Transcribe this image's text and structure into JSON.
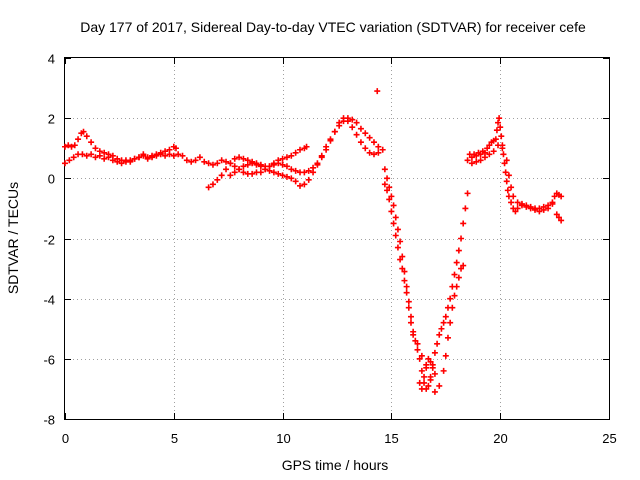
{
  "chart_data": {
    "type": "scatter",
    "title": "Day 177 of 2017, Sidereal Day-to-day VTEC variation (SDTVAR) for receiver cefe",
    "xlabel": "GPS time / hours",
    "ylabel": "SDTVAR / TECUs",
    "xlim": [
      0,
      25
    ],
    "ylim": [
      -8,
      4
    ],
    "x_ticks": [
      "0",
      "5",
      "10",
      "15",
      "20",
      "25"
    ],
    "y_ticks": [
      "-8",
      "-6",
      "-4",
      "-2",
      "0",
      "2",
      "4"
    ],
    "grid": true,
    "legend": "none",
    "marker": "+",
    "color": "#ff0000",
    "series": [
      {
        "points": [
          [
            0.0,
            0.5
          ],
          [
            0.2,
            0.6
          ],
          [
            0.4,
            0.7
          ],
          [
            0.6,
            0.8
          ],
          [
            0.8,
            0.8
          ],
          [
            1.0,
            0.75
          ],
          [
            1.2,
            0.8
          ],
          [
            1.4,
            0.7
          ],
          [
            1.6,
            0.75
          ],
          [
            1.8,
            0.65
          ],
          [
            2.0,
            0.7
          ],
          [
            2.2,
            0.6
          ],
          [
            2.4,
            0.55
          ],
          [
            2.6,
            0.5
          ],
          [
            2.8,
            0.6
          ],
          [
            3.0,
            0.55
          ],
          [
            3.2,
            0.65
          ],
          [
            3.4,
            0.7
          ],
          [
            3.6,
            0.8
          ],
          [
            3.8,
            0.65
          ],
          [
            4.0,
            0.7
          ],
          [
            4.2,
            0.75
          ],
          [
            4.4,
            0.8
          ],
          [
            4.6,
            0.75
          ],
          [
            4.8,
            0.8
          ],
          [
            5.0,
            0.75
          ],
          [
            5.2,
            0.8
          ],
          [
            5.4,
            0.75
          ],
          [
            5.6,
            0.6
          ],
          [
            5.8,
            0.55
          ],
          [
            6.0,
            0.6
          ],
          [
            6.2,
            0.7
          ],
          [
            6.4,
            0.55
          ],
          [
            6.6,
            0.5
          ],
          [
            6.8,
            0.45
          ],
          [
            7.0,
            0.5
          ],
          [
            7.2,
            0.6
          ],
          [
            7.4,
            0.55
          ],
          [
            7.6,
            0.5
          ],
          [
            7.8,
            0.4
          ],
          [
            8.0,
            0.3
          ],
          [
            8.2,
            0.2
          ],
          [
            8.4,
            0.15
          ],
          [
            8.6,
            0.15
          ],
          [
            8.8,
            0.2
          ],
          [
            9.0,
            0.2
          ],
          [
            9.2,
            0.3
          ],
          [
            9.4,
            0.4
          ],
          [
            9.6,
            0.5
          ],
          [
            9.8,
            0.6
          ],
          [
            10.0,
            0.65
          ],
          [
            10.2,
            0.7
          ],
          [
            10.4,
            0.75
          ],
          [
            10.6,
            0.85
          ],
          [
            10.8,
            0.95
          ],
          [
            11.0,
            1.0
          ],
          [
            11.1,
            1.05
          ]
        ]
      },
      {
        "points": [
          [
            0.0,
            1.05
          ],
          [
            0.15,
            1.1
          ],
          [
            0.3,
            1.05
          ],
          [
            0.45,
            1.1
          ],
          [
            0.6,
            1.3
          ],
          [
            0.75,
            1.5
          ],
          [
            0.85,
            1.55
          ],
          [
            1.0,
            1.4
          ],
          [
            1.2,
            1.2
          ],
          [
            1.4,
            1.0
          ],
          [
            1.6,
            0.9
          ],
          [
            1.8,
            0.85
          ],
          [
            2.0,
            0.8
          ],
          [
            2.2,
            0.75
          ],
          [
            2.4,
            0.65
          ],
          [
            2.6,
            0.6
          ],
          [
            2.8,
            0.55
          ],
          [
            3.0,
            0.6
          ],
          [
            3.2,
            0.65
          ],
          [
            3.4,
            0.7
          ],
          [
            3.6,
            0.75
          ],
          [
            3.8,
            0.7
          ],
          [
            4.0,
            0.75
          ],
          [
            4.2,
            0.8
          ],
          [
            4.4,
            0.85
          ],
          [
            4.6,
            0.9
          ],
          [
            4.8,
            0.95
          ],
          [
            5.0,
            1.05
          ],
          [
            5.1,
            1.0
          ]
        ]
      },
      {
        "points": [
          [
            6.6,
            -0.3
          ],
          [
            6.8,
            -0.2
          ],
          [
            7.0,
            -0.05
          ],
          [
            7.2,
            0.1
          ],
          [
            7.4,
            0.3
          ],
          [
            7.6,
            0.5
          ],
          [
            7.8,
            0.65
          ],
          [
            8.0,
            0.7
          ],
          [
            8.2,
            0.65
          ],
          [
            8.4,
            0.6
          ],
          [
            8.6,
            0.55
          ],
          [
            8.8,
            0.45
          ],
          [
            9.0,
            0.4
          ],
          [
            9.2,
            0.3
          ],
          [
            9.4,
            0.25
          ],
          [
            9.6,
            0.2
          ],
          [
            9.8,
            0.15
          ],
          [
            10.0,
            0.1
          ],
          [
            10.2,
            0.05
          ],
          [
            10.4,
            0.0
          ],
          [
            10.6,
            -0.1
          ],
          [
            10.8,
            -0.25
          ],
          [
            11.0,
            -0.2
          ],
          [
            11.2,
            -0.05
          ],
          [
            11.4,
            0.2
          ],
          [
            11.6,
            0.45
          ],
          [
            11.8,
            0.75
          ],
          [
            12.0,
            1.05
          ],
          [
            12.2,
            1.3
          ],
          [
            12.4,
            1.55
          ],
          [
            12.6,
            1.75
          ],
          [
            12.8,
            1.9
          ],
          [
            13.0,
            2.0
          ],
          [
            13.2,
            1.95
          ],
          [
            13.4,
            1.85
          ],
          [
            13.6,
            1.65
          ],
          [
            13.8,
            1.5
          ],
          [
            14.0,
            1.35
          ],
          [
            14.2,
            1.2
          ],
          [
            14.4,
            1.05
          ]
        ]
      },
      {
        "points": [
          [
            7.6,
            0.1
          ],
          [
            7.8,
            0.2
          ],
          [
            8.0,
            0.3
          ],
          [
            8.2,
            0.4
          ],
          [
            8.4,
            0.45
          ],
          [
            8.6,
            0.5
          ],
          [
            8.8,
            0.5
          ],
          [
            9.0,
            0.45
          ],
          [
            9.2,
            0.4
          ],
          [
            9.4,
            0.4
          ],
          [
            9.6,
            0.45
          ],
          [
            9.8,
            0.5
          ],
          [
            10.0,
            0.45
          ],
          [
            10.2,
            0.4
          ],
          [
            10.4,
            0.3
          ],
          [
            10.6,
            0.25
          ],
          [
            10.8,
            0.2
          ],
          [
            11.0,
            0.2
          ],
          [
            11.2,
            0.25
          ],
          [
            11.4,
            0.35
          ],
          [
            11.6,
            0.5
          ],
          [
            11.8,
            0.7
          ],
          [
            12.0,
            0.95
          ],
          [
            12.2,
            1.25
          ],
          [
            12.4,
            1.55
          ],
          [
            12.6,
            1.85
          ],
          [
            12.8,
            2.0
          ],
          [
            13.0,
            1.9
          ],
          [
            13.2,
            1.7
          ],
          [
            13.4,
            1.45
          ],
          [
            13.6,
            1.2
          ],
          [
            13.8,
            1.0
          ],
          [
            14.0,
            0.85
          ],
          [
            14.2,
            0.8
          ],
          [
            14.4,
            0.85
          ],
          [
            14.6,
            0.95
          ]
        ]
      },
      {
        "points": [
          [
            14.35,
            2.9
          ]
        ]
      },
      {
        "points": [
          [
            14.7,
            0.3
          ],
          [
            14.8,
            0.0
          ],
          [
            14.9,
            -0.3
          ],
          [
            15.0,
            -0.6
          ],
          [
            15.1,
            -0.9
          ],
          [
            15.2,
            -1.3
          ],
          [
            15.3,
            -1.7
          ],
          [
            15.4,
            -2.1
          ],
          [
            15.5,
            -2.6
          ],
          [
            15.6,
            -3.1
          ],
          [
            15.7,
            -3.6
          ],
          [
            15.8,
            -4.1
          ],
          [
            15.9,
            -4.6
          ],
          [
            16.0,
            -5.1
          ],
          [
            16.1,
            -5.4
          ],
          [
            16.2,
            -5.7
          ],
          [
            16.3,
            -6.0
          ],
          [
            16.4,
            -6.4
          ],
          [
            16.5,
            -6.8
          ],
          [
            16.6,
            -7.0
          ],
          [
            16.7,
            -6.9
          ],
          [
            16.8,
            -6.6
          ],
          [
            16.9,
            -6.2
          ],
          [
            17.0,
            -5.8
          ],
          [
            17.1,
            -5.5
          ],
          [
            17.2,
            -5.2
          ],
          [
            17.3,
            -5.0
          ],
          [
            17.4,
            -4.8
          ],
          [
            17.5,
            -4.6
          ],
          [
            17.6,
            -4.3
          ],
          [
            17.7,
            -4.0
          ],
          [
            17.8,
            -3.6
          ],
          [
            17.9,
            -3.2
          ],
          [
            18.0,
            -2.8
          ],
          [
            18.1,
            -2.4
          ],
          [
            18.2,
            -2.0
          ],
          [
            18.3,
            -1.5
          ],
          [
            18.4,
            -1.0
          ],
          [
            18.5,
            -0.5
          ]
        ]
      },
      {
        "points": [
          [
            14.7,
            -0.2
          ],
          [
            14.8,
            -0.4
          ],
          [
            14.9,
            -0.7
          ],
          [
            15.0,
            -1.1
          ],
          [
            15.1,
            -1.5
          ],
          [
            15.2,
            -1.9
          ],
          [
            15.3,
            -2.3
          ],
          [
            15.4,
            -2.7
          ],
          [
            15.5,
            -3.0
          ],
          [
            15.6,
            -3.4
          ],
          [
            15.7,
            -3.8
          ],
          [
            15.8,
            -4.3
          ],
          [
            15.9,
            -4.8
          ],
          [
            16.0,
            -5.2
          ],
          [
            16.2,
            -5.5
          ],
          [
            16.4,
            -5.9
          ],
          [
            16.6,
            -6.3
          ],
          [
            16.8,
            -6.7
          ],
          [
            17.0,
            -7.1
          ],
          [
            17.2,
            -6.9
          ],
          [
            17.4,
            -6.4
          ],
          [
            17.5,
            -5.9
          ],
          [
            17.6,
            -5.3
          ],
          [
            17.7,
            -4.8
          ],
          [
            17.8,
            -4.3
          ],
          [
            17.9,
            -3.9
          ],
          [
            18.0,
            -3.6
          ],
          [
            18.1,
            -3.3
          ],
          [
            18.2,
            -3.0
          ],
          [
            18.3,
            -2.9
          ]
        ]
      },
      {
        "points": [
          [
            16.3,
            -6.8
          ],
          [
            16.4,
            -7.0
          ],
          [
            16.5,
            -6.6
          ],
          [
            16.6,
            -6.2
          ],
          [
            16.7,
            -6.0
          ],
          [
            16.8,
            -6.1
          ],
          [
            16.9,
            -6.3
          ],
          [
            17.0,
            -6.5
          ]
        ]
      },
      {
        "points": [
          [
            18.6,
            0.8
          ],
          [
            18.7,
            0.7
          ],
          [
            18.8,
            0.8
          ],
          [
            18.9,
            0.75
          ],
          [
            19.0,
            0.85
          ],
          [
            19.1,
            0.8
          ],
          [
            19.2,
            0.9
          ],
          [
            19.3,
            0.85
          ],
          [
            19.4,
            1.0
          ],
          [
            19.5,
            1.1
          ],
          [
            19.6,
            1.2
          ],
          [
            19.7,
            1.25
          ],
          [
            19.8,
            1.3
          ],
          [
            19.85,
            1.6
          ],
          [
            19.9,
            1.85
          ],
          [
            19.95,
            2.0
          ],
          [
            20.0,
            1.7
          ],
          [
            20.05,
            1.4
          ],
          [
            20.1,
            1.1
          ],
          [
            20.15,
            0.8
          ],
          [
            20.2,
            0.5
          ],
          [
            20.25,
            0.2
          ],
          [
            20.3,
            -0.1
          ],
          [
            20.35,
            -0.4
          ],
          [
            20.4,
            -0.6
          ],
          [
            20.5,
            -0.8
          ],
          [
            20.6,
            -1.0
          ],
          [
            20.7,
            -1.1
          ],
          [
            20.8,
            -1.0
          ],
          [
            21.0,
            -0.9
          ],
          [
            21.2,
            -0.95
          ],
          [
            21.4,
            -1.0
          ],
          [
            21.6,
            -1.05
          ],
          [
            21.8,
            -1.1
          ],
          [
            22.0,
            -1.05
          ],
          [
            22.2,
            -1.0
          ],
          [
            22.4,
            -0.8
          ],
          [
            22.5,
            -0.6
          ],
          [
            22.6,
            -0.5
          ],
          [
            22.7,
            -0.55
          ],
          [
            22.8,
            -0.6
          ]
        ]
      },
      {
        "points": [
          [
            18.5,
            0.6
          ],
          [
            18.7,
            0.5
          ],
          [
            18.9,
            0.55
          ],
          [
            19.1,
            0.6
          ],
          [
            19.3,
            0.7
          ],
          [
            19.5,
            0.8
          ],
          [
            19.7,
            0.9
          ],
          [
            19.9,
            1.1
          ],
          [
            20.1,
            1.0
          ],
          [
            20.3,
            0.6
          ],
          [
            20.4,
            0.1
          ],
          [
            20.5,
            -0.3
          ],
          [
            20.6,
            -0.6
          ],
          [
            20.8,
            -0.8
          ],
          [
            21.0,
            -0.85
          ],
          [
            21.2,
            -0.9
          ],
          [
            21.4,
            -0.95
          ],
          [
            21.6,
            -1.0
          ],
          [
            21.8,
            -1.0
          ],
          [
            22.0,
            -0.95
          ],
          [
            22.2,
            -0.9
          ],
          [
            22.4,
            -0.85
          ],
          [
            22.6,
            -1.2
          ],
          [
            22.7,
            -1.3
          ],
          [
            22.8,
            -1.4
          ]
        ]
      }
    ]
  }
}
